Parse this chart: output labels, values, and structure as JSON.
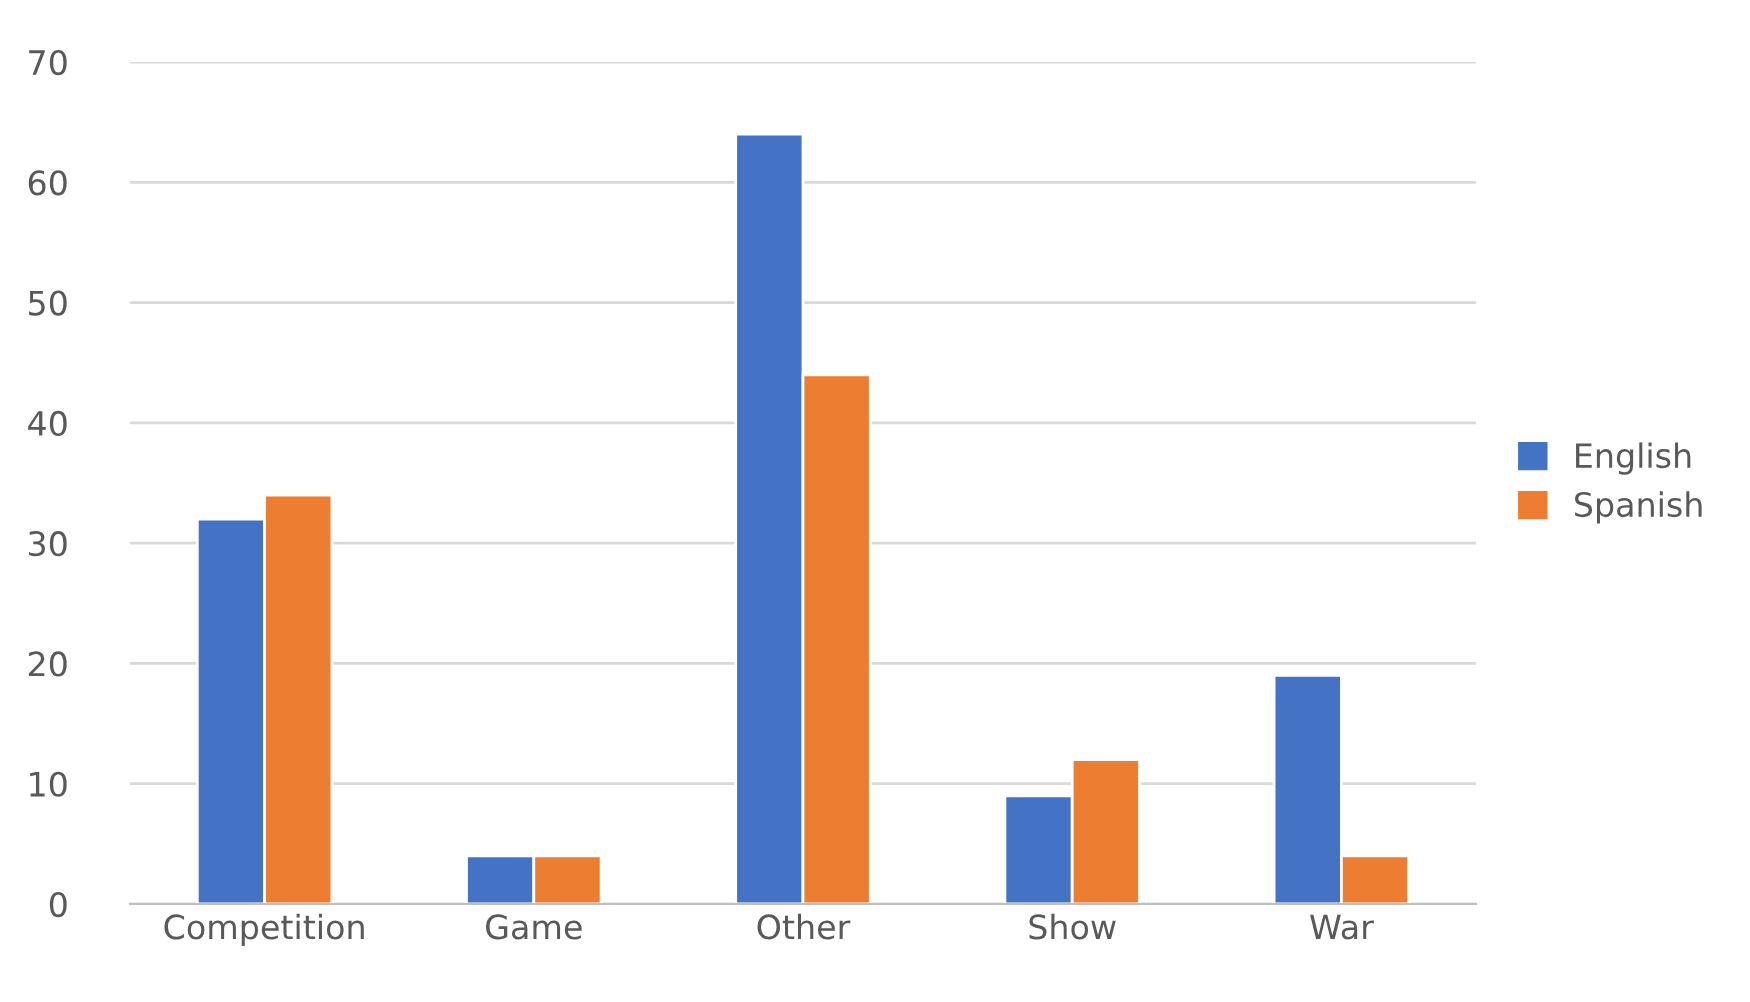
{
  "chart_data": {
    "type": "bar",
    "categories": [
      "Competition",
      "Game",
      "Other",
      "Show",
      "War"
    ],
    "series": [
      {
        "name": "English",
        "color": "#4472c4",
        "values": [
          32,
          4,
          64,
          9,
          19
        ]
      },
      {
        "name": "Spanish",
        "color": "#ed7d31",
        "values": [
          34,
          4,
          44,
          12,
          4
        ]
      }
    ],
    "ylim": [
      0,
      70
    ],
    "yticks": [
      0,
      10,
      20,
      30,
      40,
      50,
      60,
      70
    ],
    "grid": "y",
    "legend": "right"
  }
}
